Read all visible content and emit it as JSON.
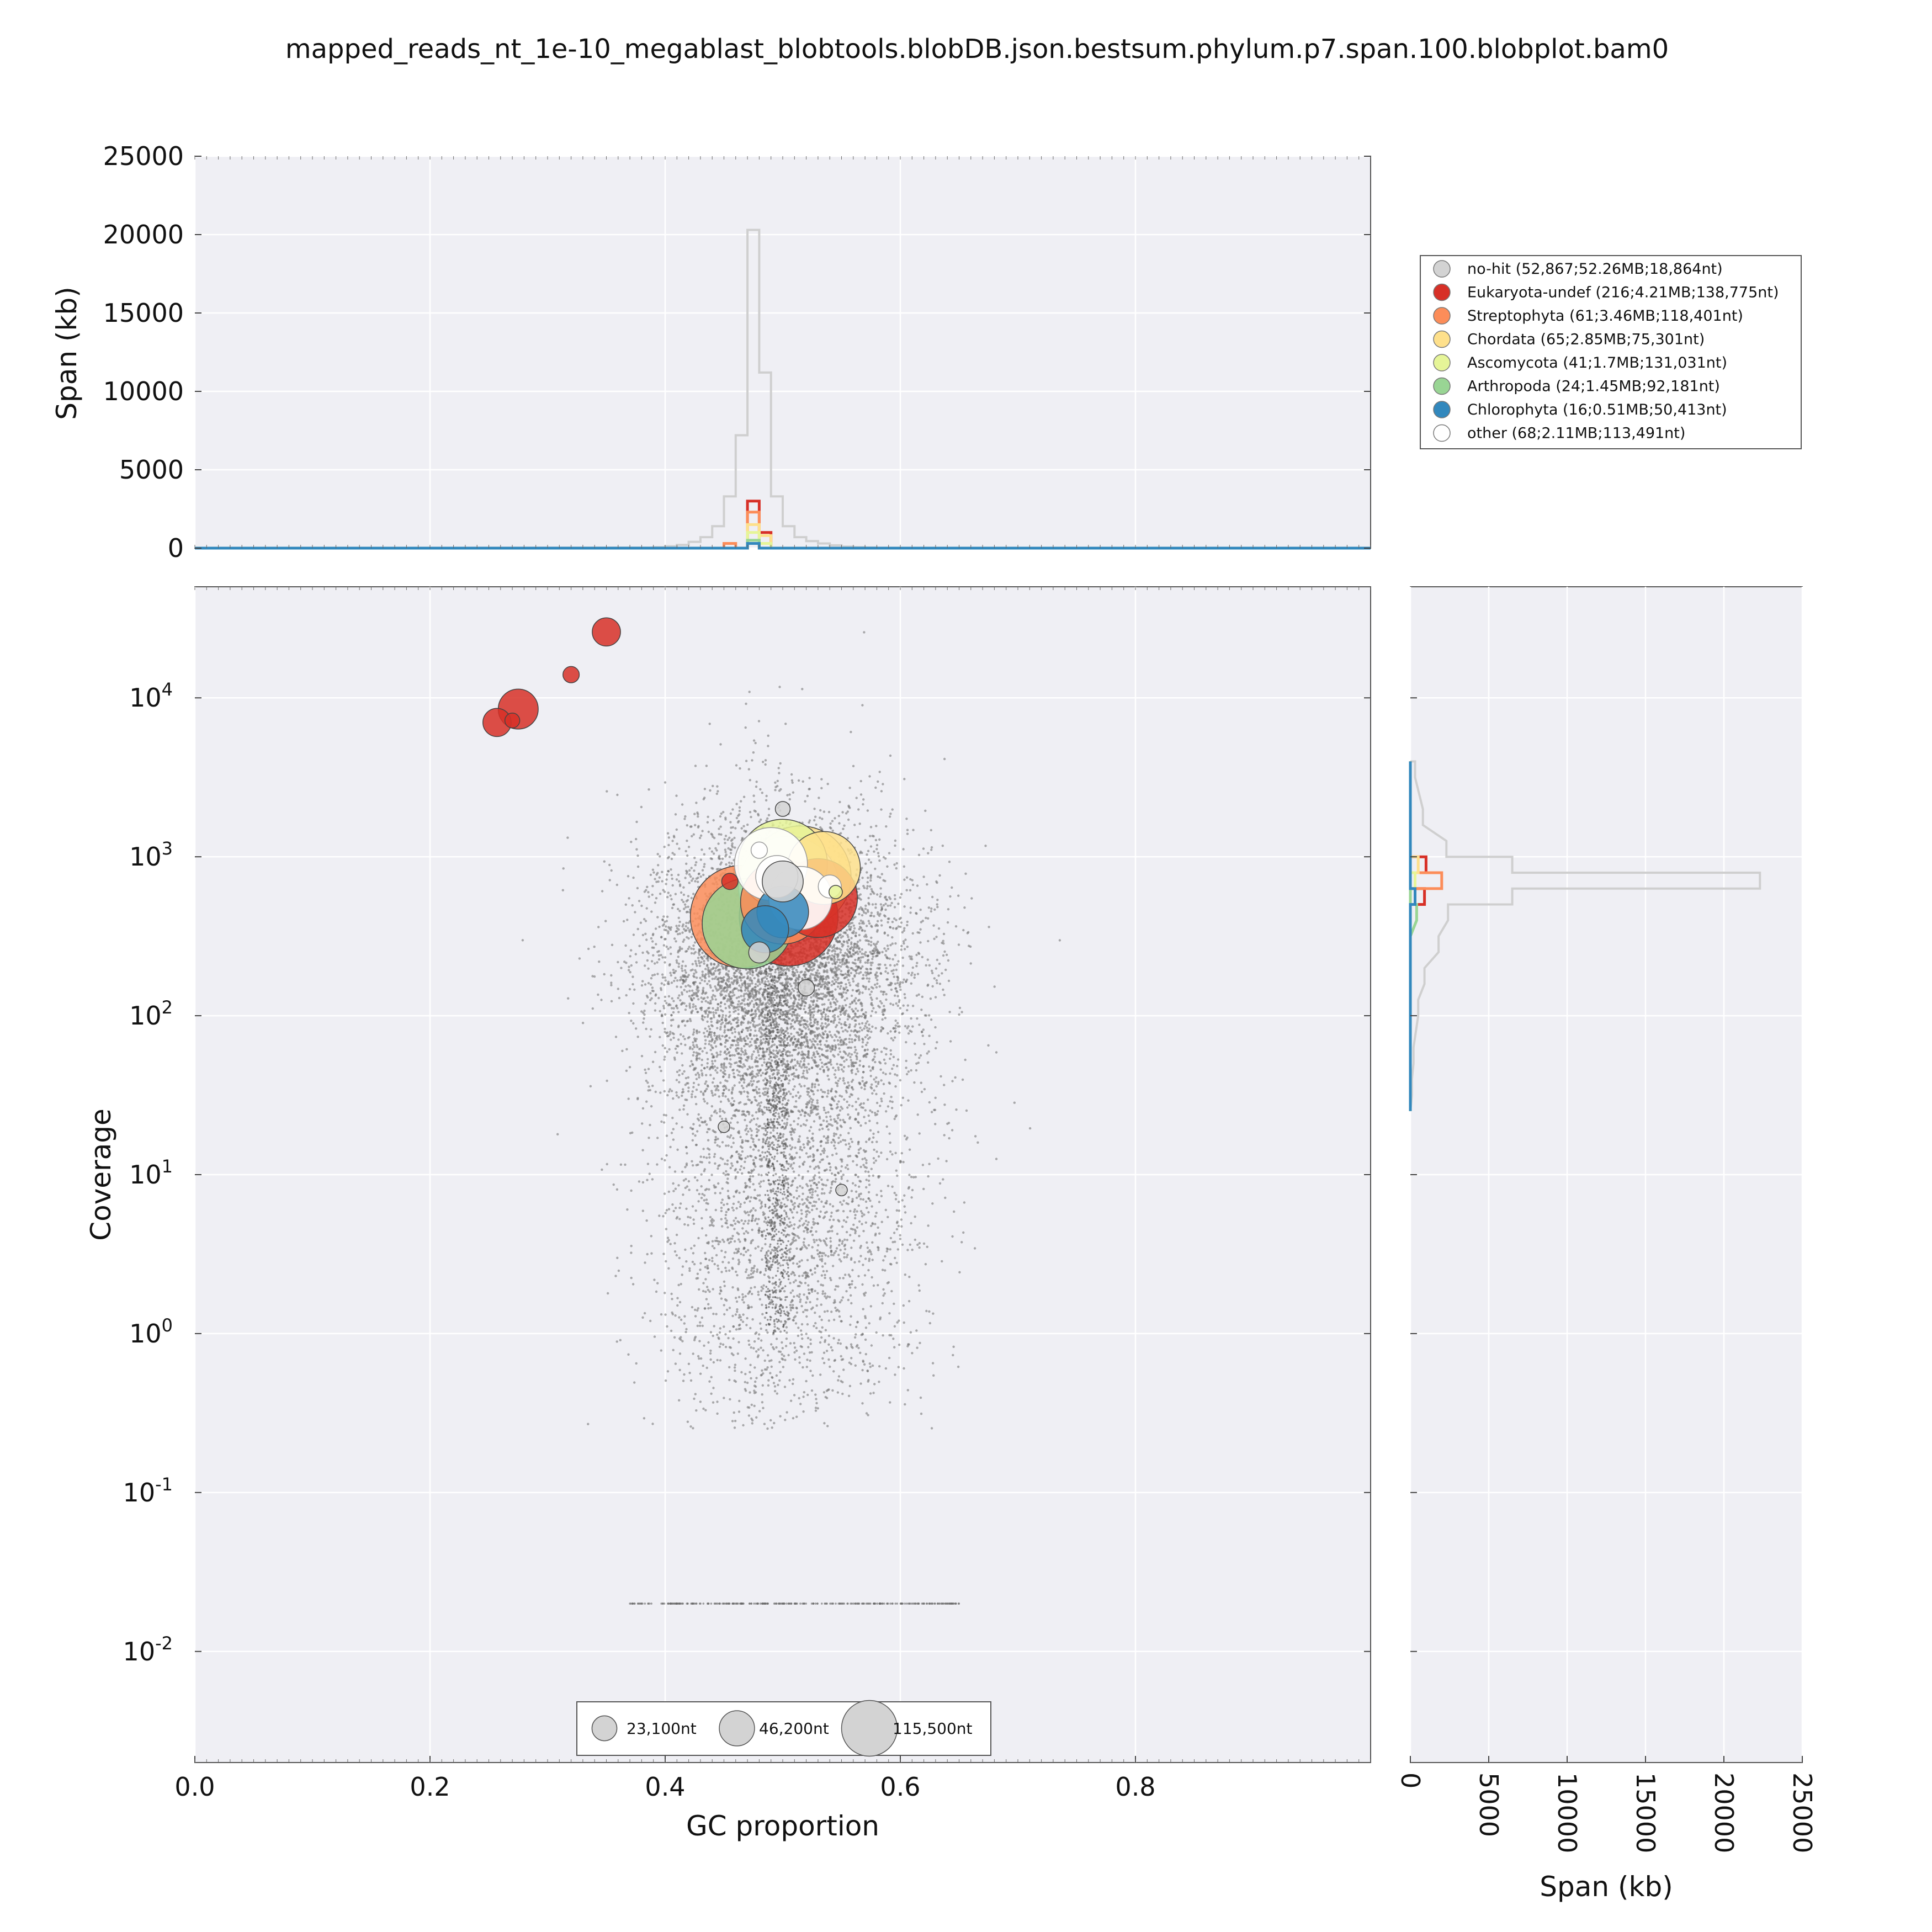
{
  "chart_data": {
    "type": "scatter",
    "title": "mapped_reads_nt_1e-10_megablast_blobtools.blobDB.json.bestsum.phylum.p7.span.100.blobplot.bam0",
    "xlabel": "GC proportion",
    "ylabel": "Coverage",
    "xlim": [
      0.0,
      1.0
    ],
    "ylim": [
      0.002,
      50000
    ],
    "y_scale": "log",
    "grid": true,
    "x_ticks": [
      "0.0",
      "0.2",
      "0.4",
      "0.6",
      "0.8"
    ],
    "y_ticks": [
      {
        "base": "10",
        "exp": "4"
      },
      {
        "base": "10",
        "exp": "3"
      },
      {
        "base": "10",
        "exp": "2"
      },
      {
        "base": "10",
        "exp": "1"
      },
      {
        "base": "10",
        "exp": "0"
      },
      {
        "base": "10",
        "exp": "-1"
      },
      {
        "base": "10",
        "exp": "-2"
      }
    ],
    "legend_placement": "top-right, outside plot",
    "series": [
      {
        "name": "no-hit (52,867;52.26MB;18,864nt)",
        "color": "#d3d3d3",
        "points": [
          [
            0.5,
            700,
            18864
          ],
          [
            0.48,
            250,
            5000
          ],
          [
            0.52,
            150,
            3000
          ],
          [
            0.45,
            20,
            1500
          ],
          [
            0.55,
            8,
            1500
          ],
          [
            0.5,
            2000,
            2500
          ]
        ]
      },
      {
        "name": "Eukaryota-undef (216;4.21MB;138,775nt)",
        "color": "#d73027",
        "points": [
          [
            0.505,
            420,
            110000
          ],
          [
            0.53,
            550,
            70000
          ],
          [
            0.275,
            8500,
            18000
          ],
          [
            0.257,
            7000,
            9000
          ],
          [
            0.35,
            26000,
            9000
          ],
          [
            0.32,
            14000,
            3000
          ],
          [
            0.27,
            7200,
            2500
          ],
          [
            0.455,
            700,
            3000
          ]
        ]
      },
      {
        "name": "Streptophyta (61;3.46MB;118,401nt)",
        "color": "#fc8d59",
        "points": [
          [
            0.465,
            420,
            118401
          ],
          [
            0.5,
            520,
            80000
          ]
        ]
      },
      {
        "name": "Chordata (65;2.85MB;75,301nt)",
        "color": "#fee08b",
        "points": [
          [
            0.515,
            750,
            115500
          ],
          [
            0.535,
            850,
            60000
          ]
        ]
      },
      {
        "name": "Ascomycota (41;1.7MB;131,031nt)",
        "color": "#e6f598",
        "points": [
          [
            0.5,
            900,
            90000
          ],
          [
            0.545,
            600,
            2000
          ]
        ]
      },
      {
        "name": "Arthropoda (24;1.45MB;92,181nt)",
        "color": "#99d594",
        "points": [
          [
            0.47,
            380,
            92181
          ]
        ]
      },
      {
        "name": "Chlorophyta (16;0.51MB;50,413nt)",
        "color": "#3288bd",
        "points": [
          [
            0.485,
            350,
            25000
          ],
          [
            0.5,
            450,
            30000
          ]
        ]
      },
      {
        "name": "other (68;2.11MB;113,491nt)",
        "color": "#ffffff",
        "points": [
          [
            0.505,
            650,
            113491
          ],
          [
            0.49,
            900,
            60000
          ],
          [
            0.515,
            550,
            45000
          ],
          [
            0.495,
            750,
            20000
          ],
          [
            0.54,
            650,
            6000
          ],
          [
            0.48,
            1100,
            3000
          ]
        ]
      }
    ],
    "size_legend": [
      "23,100nt",
      "46,200nt",
      "115,500nt"
    ],
    "top_hist": {
      "ylabel": "Span (kb)",
      "yticks": [
        "0",
        "5000",
        "10000",
        "15000",
        "20000",
        "25000"
      ],
      "ylim": [
        0,
        25000
      ],
      "bins": [
        0.38,
        0.39,
        0.4,
        0.41,
        0.42,
        0.43,
        0.44,
        0.45,
        0.46,
        0.47,
        0.48,
        0.49,
        0.5,
        0.51,
        0.52,
        0.53,
        0.54,
        0.55,
        0.56,
        0.57,
        0.58,
        0.59,
        0.6,
        0.61
      ],
      "series": [
        {
          "name": "no-hit",
          "values": [
            30,
            60,
            120,
            200,
            400,
            700,
            1400,
            3300,
            7200,
            20300,
            11200,
            3300,
            1400,
            700,
            450,
            300,
            180,
            100,
            60,
            40,
            20,
            10,
            5
          ]
        },
        {
          "name": "Eukaryota-undef",
          "values": [
            0,
            0,
            0,
            0,
            0,
            0,
            0,
            0,
            0,
            3000,
            1000,
            0,
            0,
            0,
            0,
            0,
            0,
            0,
            0,
            0,
            0,
            0,
            0
          ]
        },
        {
          "name": "Streptophyta",
          "values": [
            0,
            0,
            0,
            0,
            0,
            0,
            0,
            300,
            0,
            2300,
            0,
            0,
            0,
            0,
            0,
            0,
            0,
            0,
            0,
            0,
            0,
            0,
            0
          ]
        },
        {
          "name": "Chordata",
          "values": [
            0,
            0,
            0,
            0,
            0,
            0,
            0,
            0,
            0,
            1500,
            800,
            0,
            0,
            0,
            0,
            0,
            0,
            0,
            0,
            0,
            0,
            0,
            0
          ]
        },
        {
          "name": "Ascomycota",
          "values": [
            0,
            0,
            0,
            0,
            0,
            0,
            0,
            0,
            0,
            1000,
            300,
            0,
            0,
            0,
            0,
            0,
            0,
            0,
            0,
            0,
            0,
            0,
            0
          ]
        },
        {
          "name": "Arthropoda",
          "values": [
            0,
            0,
            0,
            0,
            0,
            0,
            0,
            0,
            0,
            500,
            0,
            0,
            0,
            0,
            0,
            0,
            0,
            0,
            0,
            0,
            0,
            0,
            0
          ]
        },
        {
          "name": "Chlorophyta",
          "values": [
            0,
            0,
            0,
            0,
            0,
            0,
            0,
            0,
            0,
            300,
            0,
            0,
            0,
            0,
            0,
            0,
            0,
            0,
            0,
            0,
            0,
            0,
            0
          ]
        }
      ]
    },
    "right_hist": {
      "xlabel": "Span (kb)",
      "xticks": [
        "0",
        "5000",
        "10000",
        "15000",
        "20000",
        "25000"
      ],
      "xlim": [
        0,
        25000
      ],
      "log_bins": [
        1.5,
        1.7,
        2.0,
        2.2,
        2.4,
        2.6,
        2.7,
        2.8,
        2.9,
        3.0,
        3.2,
        3.5
      ],
      "series": [
        {
          "name": "no-hit",
          "values": [
            100,
            200,
            500,
            900,
            1800,
            2400,
            6500,
            22300,
            6500,
            2300,
            800,
            300
          ]
        },
        {
          "name": "Eukaryota-undef",
          "values": [
            0,
            0,
            0,
            0,
            0,
            0,
            900,
            0,
            1000,
            0,
            0,
            0
          ]
        },
        {
          "name": "Streptophyta",
          "values": [
            0,
            0,
            0,
            0,
            0,
            0,
            0,
            2000,
            0,
            0,
            0,
            0
          ]
        },
        {
          "name": "Chordata",
          "values": [
            0,
            0,
            0,
            0,
            0,
            0,
            0,
            0,
            500,
            0,
            0,
            0
          ]
        },
        {
          "name": "Ascomycota",
          "values": [
            0,
            0,
            0,
            0,
            0,
            0,
            0,
            300,
            0,
            0,
            0,
            0
          ]
        },
        {
          "name": "Arthropoda",
          "values": [
            0,
            0,
            0,
            0,
            0,
            400,
            0,
            0,
            0,
            0,
            0,
            0
          ]
        },
        {
          "name": "Chlorophyta",
          "values": [
            0,
            0,
            0,
            0,
            0,
            0,
            300,
            0,
            0,
            0,
            0,
            0
          ]
        }
      ]
    }
  }
}
